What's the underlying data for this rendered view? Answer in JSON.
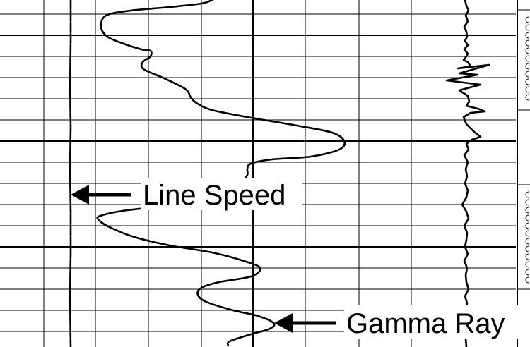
{
  "chart_data": {
    "type": "line",
    "title": "",
    "xlabel": "",
    "ylabel": "",
    "grid": true,
    "series": [
      {
        "name": "Line Speed",
        "points": [
          [
            100,
            0
          ],
          [
            100,
            60
          ],
          [
            99,
            120
          ],
          [
            100,
            180
          ],
          [
            99,
            240
          ],
          [
            100,
            300
          ],
          [
            100,
            360
          ],
          [
            99,
            420
          ],
          [
            100,
            492
          ]
        ]
      },
      {
        "name": "Gamma Ray",
        "points": [
          [
            300,
            0
          ],
          [
            285,
            5
          ],
          [
            240,
            10
          ],
          [
            185,
            15
          ],
          [
            150,
            22
          ],
          [
            143,
            38
          ],
          [
            152,
            52
          ],
          [
            175,
            62
          ],
          [
            200,
            70
          ],
          [
            213,
            72
          ],
          [
            213,
            80
          ],
          [
            202,
            88
          ],
          [
            203,
            98
          ],
          [
            230,
            110
          ],
          [
            262,
            126
          ],
          [
            270,
            138
          ],
          [
            278,
            146
          ],
          [
            300,
            156
          ],
          [
            350,
            166
          ],
          [
            420,
            178
          ],
          [
            470,
            188
          ],
          [
            487,
            200
          ],
          [
            480,
            212
          ],
          [
            440,
            222
          ],
          [
            385,
            226
          ],
          [
            355,
            232
          ],
          [
            350,
            240
          ],
          [
            350,
            248
          ],
          [
            340,
            262
          ],
          [
            330,
            270
          ],
          [
            310,
            280
          ],
          [
            285,
            286
          ],
          [
            240,
            292
          ],
          [
            180,
            298
          ],
          [
            142,
            306
          ],
          [
            140,
            312
          ],
          [
            155,
            322
          ],
          [
            190,
            336
          ],
          [
            240,
            348
          ],
          [
            300,
            358
          ],
          [
            345,
            370
          ],
          [
            368,
            380
          ],
          [
            355,
            392
          ],
          [
            310,
            400
          ],
          [
            285,
            408
          ],
          [
            280,
            418
          ],
          [
            292,
            428
          ],
          [
            330,
            440
          ],
          [
            365,
            448
          ],
          [
            387,
            458
          ],
          [
            382,
            466
          ],
          [
            355,
            474
          ],
          [
            325,
            484
          ],
          [
            323,
            490
          ]
        ]
      },
      {
        "name": "",
        "points": [
          [
            658,
            0
          ],
          [
            660,
            8
          ],
          [
            663,
            15
          ],
          [
            659,
            22
          ],
          [
            662,
            30
          ],
          [
            657,
            38
          ],
          [
            660,
            45
          ],
          [
            661,
            52
          ],
          [
            658,
            58
          ],
          [
            662,
            64
          ],
          [
            657,
            70
          ],
          [
            662,
            76
          ],
          [
            660,
            80
          ],
          [
            656,
            85
          ],
          [
            662,
            88
          ],
          [
            666,
            94
          ],
          [
            648,
            97
          ],
          [
            692,
            92
          ],
          [
            650,
            104
          ],
          [
            676,
            106
          ],
          [
            632,
            114
          ],
          [
            680,
            120
          ],
          [
            650,
            128
          ],
          [
            662,
            136
          ],
          [
            664,
            144
          ],
          [
            660,
            150
          ],
          [
            676,
            154
          ],
          [
            686,
            158
          ],
          [
            666,
            160
          ],
          [
            656,
            166
          ],
          [
            660,
            176
          ],
          [
            670,
            186
          ],
          [
            680,
            194
          ],
          [
            668,
            198
          ],
          [
            660,
            204
          ],
          [
            663,
            212
          ],
          [
            657,
            220
          ],
          [
            662,
            230
          ],
          [
            659,
            240
          ],
          [
            661,
            250
          ],
          [
            658,
            260
          ],
          [
            662,
            270
          ],
          [
            660,
            280
          ],
          [
            654,
            290
          ],
          [
            660,
            300
          ],
          [
            663,
            310
          ],
          [
            657,
            320
          ],
          [
            661,
            330
          ],
          [
            660,
            340
          ],
          [
            658,
            350
          ],
          [
            662,
            360
          ],
          [
            657,
            370
          ],
          [
            661,
            380
          ],
          [
            659,
            390
          ],
          [
            660,
            400
          ],
          [
            663,
            410
          ],
          [
            658,
            420
          ],
          [
            661,
            430
          ],
          [
            659,
            440
          ],
          [
            662,
            450
          ],
          [
            658,
            460
          ],
          [
            661,
            470
          ],
          [
            659,
            480
          ],
          [
            660,
            492
          ]
        ]
      }
    ],
    "annotations": [
      {
        "text": "Line Speed",
        "points_to": "Line Speed"
      },
      {
        "text": "Gamma Ray",
        "points_to": "Gamma Ray"
      }
    ]
  }
}
